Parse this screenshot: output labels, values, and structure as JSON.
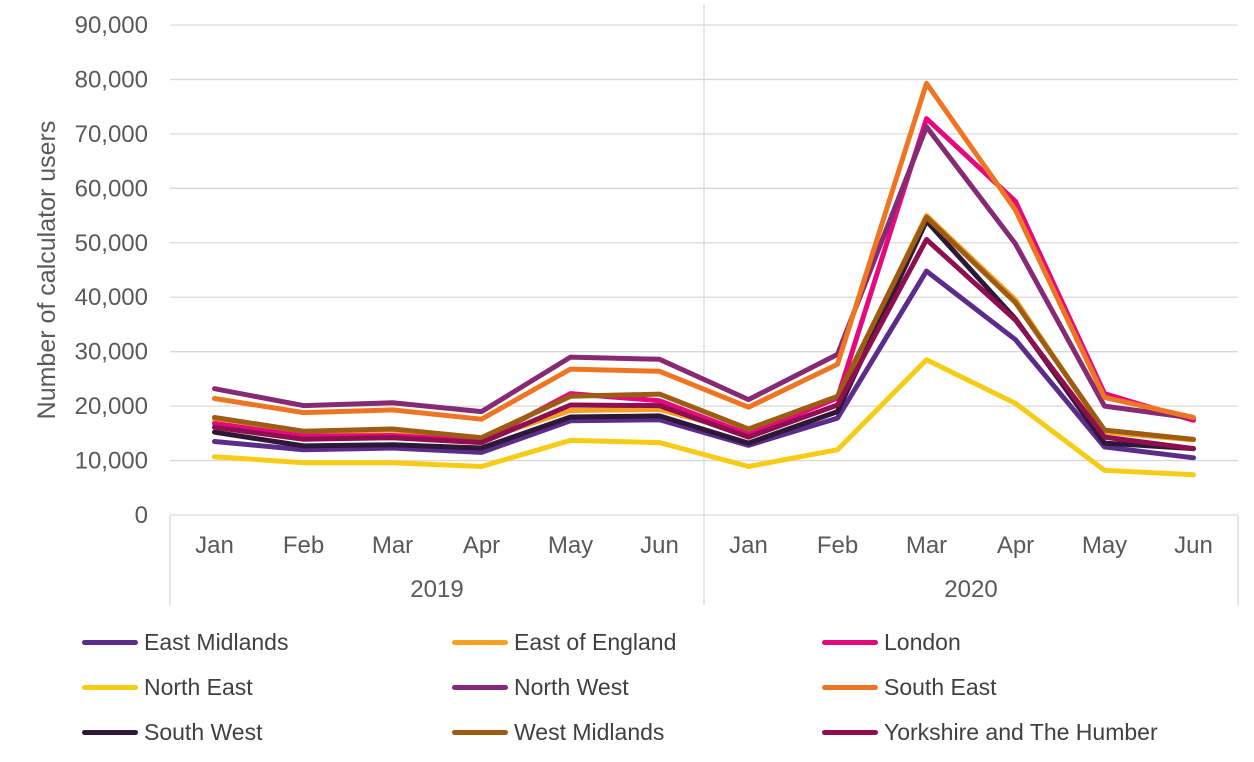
{
  "chart_data": {
    "type": "line",
    "title": "",
    "ylabel": "Number of calculator users",
    "xlabel": "",
    "ylim": [
      0,
      90000
    ],
    "yticks": [
      "0",
      "10,000",
      "20,000",
      "30,000",
      "40,000",
      "50,000",
      "60,000",
      "70,000",
      "80,000",
      "90,000"
    ],
    "ytick_values": [
      0,
      10000,
      20000,
      30000,
      40000,
      50000,
      60000,
      70000,
      80000,
      90000
    ],
    "grid": true,
    "legend_position": "bottom",
    "categories": [
      "Jan",
      "Feb",
      "Mar",
      "Apr",
      "May",
      "Jun",
      "Jan",
      "Feb",
      "Mar",
      "Apr",
      "May",
      "Jun"
    ],
    "groups": [
      {
        "label": "2019",
        "count": 6
      },
      {
        "label": "2020",
        "count": 6
      }
    ],
    "series": [
      {
        "name": "East Midlands",
        "color": "#5B2C8A",
        "values": [
          13500,
          12000,
          12300,
          11500,
          17300,
          17500,
          12800,
          17800,
          44800,
          32200,
          12500,
          10500
        ]
      },
      {
        "name": "East of England",
        "color": "#F4A124",
        "values": [
          17500,
          15200,
          15600,
          13800,
          19200,
          19400,
          15000,
          21500,
          55000,
          39500,
          15200,
          13800
        ]
      },
      {
        "name": "London",
        "color": "#E5097F",
        "values": [
          16800,
          14500,
          14600,
          13600,
          22300,
          21000,
          14800,
          21500,
          72800,
          57600,
          22300,
          17400
        ]
      },
      {
        "name": "North East",
        "color": "#F6CD14",
        "values": [
          10700,
          9600,
          9600,
          8900,
          13700,
          13300,
          8900,
          12000,
          28500,
          20500,
          8200,
          7400
        ]
      },
      {
        "name": "North West",
        "color": "#862A73",
        "values": [
          23200,
          20100,
          20600,
          19000,
          29000,
          28600,
          21200,
          29500,
          71300,
          49800,
          20000,
          17800
        ]
      },
      {
        "name": "South East",
        "color": "#EE7623",
        "values": [
          21400,
          18800,
          19300,
          17600,
          26800,
          26400,
          19800,
          27700,
          79300,
          56000,
          21600,
          17900
        ]
      },
      {
        "name": "South West",
        "color": "#2D1838",
        "values": [
          15200,
          12700,
          12900,
          12300,
          18000,
          18200,
          13200,
          19000,
          54000,
          36000,
          13200,
          12200
        ]
      },
      {
        "name": "West Midlands",
        "color": "#9E5B12",
        "values": [
          17900,
          15400,
          15800,
          14200,
          21800,
          22200,
          15800,
          21800,
          54700,
          39000,
          15600,
          13900
        ]
      },
      {
        "name": "Yorkshire and The Humber",
        "color": "#8E0E4F",
        "values": [
          16100,
          13900,
          14200,
          13300,
          20200,
          20100,
          14300,
          20200,
          50600,
          35800,
          14300,
          12200
        ]
      }
    ]
  }
}
